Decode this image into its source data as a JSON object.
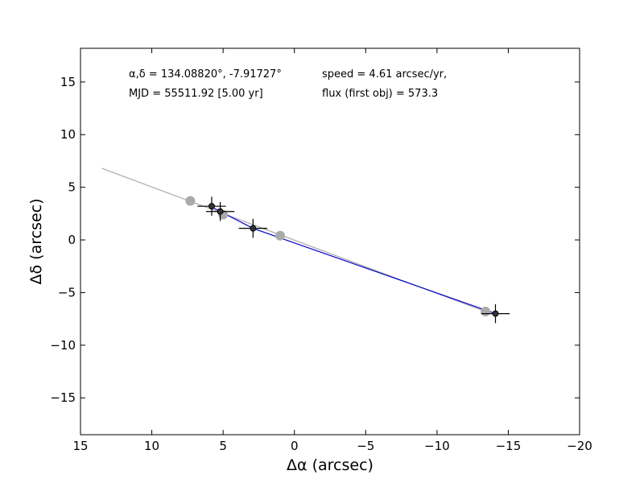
{
  "chart_data": {
    "type": "scatter",
    "title": "",
    "xlabel": "Δα (arcsec)",
    "ylabel": "Δδ (arcsec)",
    "xlim": [
      15,
      -20
    ],
    "ylim": [
      -18.5,
      18.2
    ],
    "x_inverted": true,
    "xticks": [
      15,
      10,
      5,
      0,
      -5,
      -10,
      -15,
      -20
    ],
    "yticks": [
      15,
      10,
      5,
      0,
      -5,
      -10,
      -15
    ],
    "grid": false,
    "annotations": [
      "α,δ = 134.08820°, -7.91727°",
      "MJD = 55511.92 [5.00 yr]",
      "speed = 4.61 arcsec/yr,",
      "flux (first obj) = 573.3"
    ],
    "colors": {
      "observed": "#333333",
      "model": "#aaaaaa",
      "fit_line": "#0000cc",
      "model_line": "#aaaaaa"
    },
    "observed": [
      {
        "x": 5.8,
        "y": 3.2,
        "xerr": 1.0,
        "yerr": 0.9
      },
      {
        "x": 5.2,
        "y": 2.7,
        "xerr": 1.0,
        "yerr": 0.9
      },
      {
        "x": 2.9,
        "y": 1.1,
        "xerr": 1.0,
        "yerr": 0.9
      },
      {
        "x": -14.1,
        "y": -7.0,
        "xerr": 1.0,
        "yerr": 0.9
      }
    ],
    "model_points": [
      {
        "x": 7.3,
        "y": 3.7
      },
      {
        "x": 5.0,
        "y": 2.4
      },
      {
        "x": 1.0,
        "y": 0.4
      },
      {
        "x": -13.4,
        "y": -6.8
      }
    ],
    "model_line": {
      "x": [
        13.5,
        -13.4
      ],
      "y": [
        6.8,
        -6.8
      ]
    },
    "fit_line": {
      "x": [
        5.9,
        5.2,
        2.9,
        -14.1
      ],
      "y": [
        3.2,
        2.7,
        1.1,
        -7.0
      ]
    }
  }
}
